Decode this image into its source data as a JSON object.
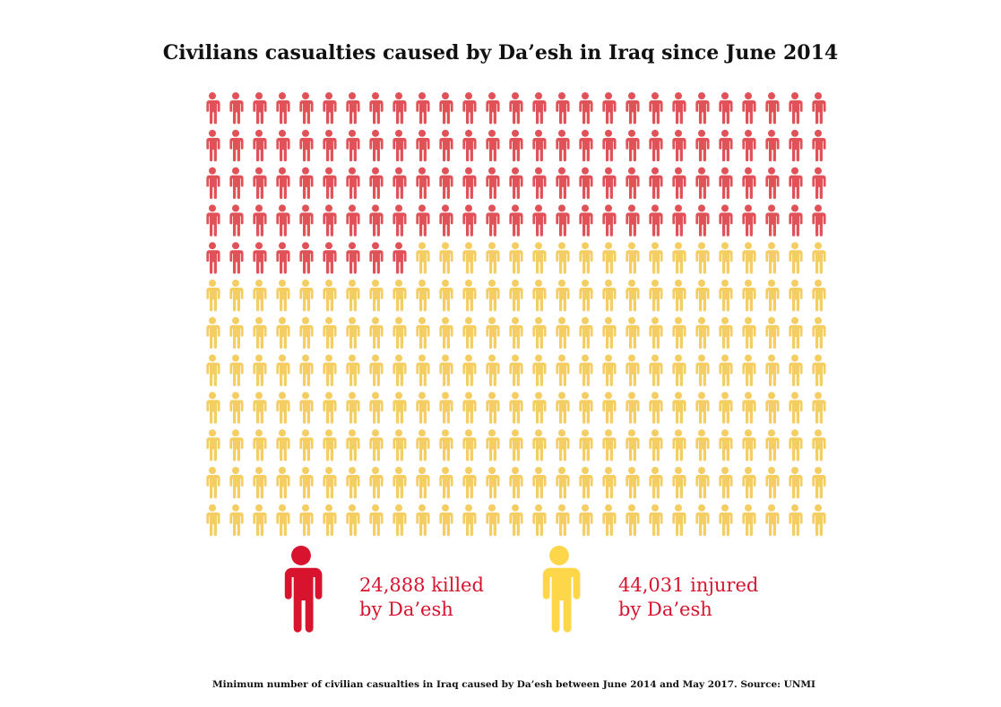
{
  "chart_data": {
    "type": "pictogram",
    "title": "Civilians casualties caused by Da’esh in Iraq since June 2014",
    "grid": {
      "columns": 27,
      "rows": 12
    },
    "series": [
      {
        "name": "killed",
        "value": 24888,
        "icons": 117,
        "color": "#e05257",
        "legend_color": "#d8132e",
        "label_line1": "24,888 killed",
        "label_line2": "by Da’esh"
      },
      {
        "name": "injured",
        "value": 44031,
        "icons": 207,
        "color": "#f4cd63",
        "legend_color": "#fdd64a",
        "label_line1": "44,031 injured",
        "label_line2": "by Da’esh"
      }
    ],
    "footnote": "Minimum number of civilian casualties in Iraq caused by Da’esh between June 2014 and May 2017. Source: UNMI"
  }
}
